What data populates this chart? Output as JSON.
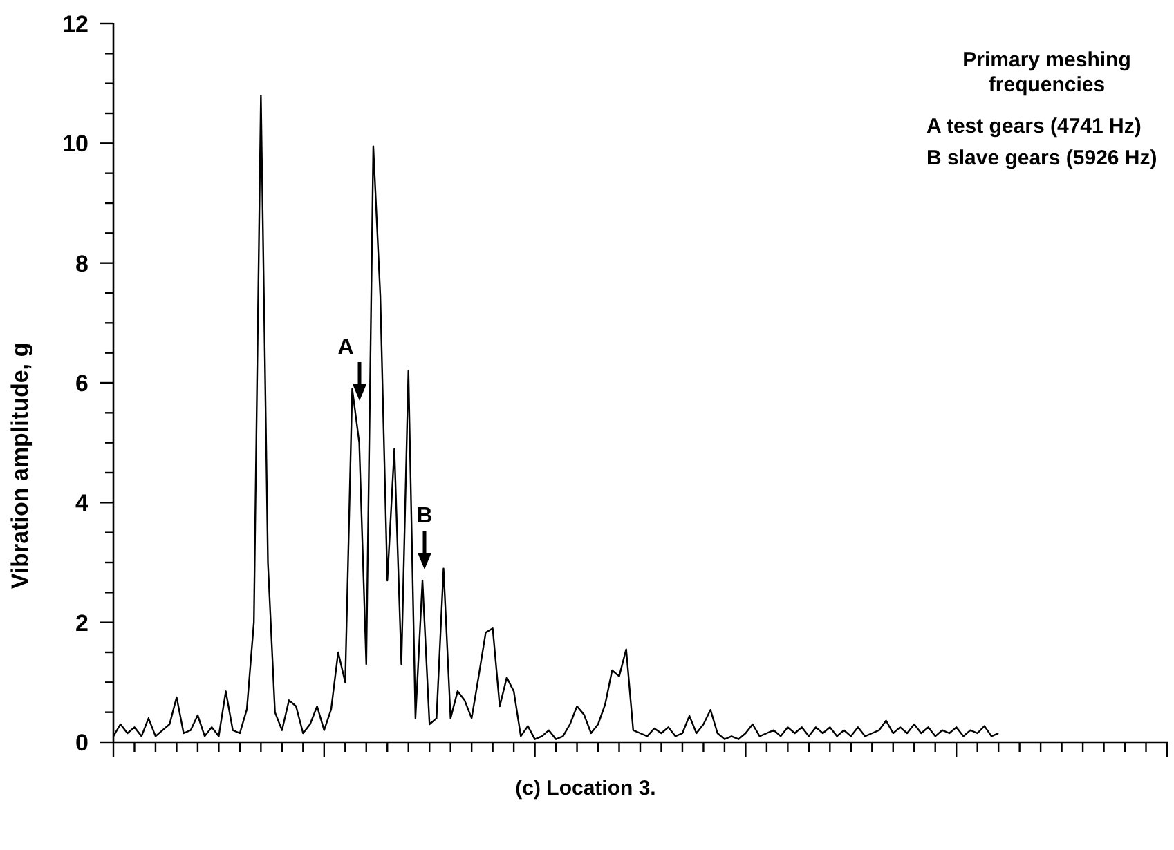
{
  "chart_data": {
    "type": "line",
    "xlabel": "(c) Location 3.",
    "ylabel": "Vibration amplitude, g",
    "categories": [
      null,
      null,
      null,
      null,
      null,
      null,
      null,
      null,
      null,
      null,
      null,
      null,
      null,
      null,
      null,
      null,
      null,
      null,
      null,
      null,
      null,
      null,
      null,
      null,
      null,
      null,
      null,
      null,
      null,
      null,
      null,
      null,
      null,
      null,
      null,
      null,
      null,
      null,
      null,
      null,
      null,
      null,
      null,
      null,
      null,
      null,
      null,
      null,
      null,
      null,
      null,
      null,
      null,
      null,
      null,
      null,
      null,
      null,
      null,
      null,
      null,
      null,
      null,
      null,
      null,
      null,
      null,
      null,
      null,
      null,
      null,
      null,
      null,
      null,
      null,
      null,
      null,
      null,
      null,
      null,
      null,
      null,
      null,
      null,
      null,
      null,
      null,
      null,
      null,
      null,
      null,
      null,
      null,
      null,
      null,
      null,
      null,
      null,
      null,
      null,
      null,
      null,
      null,
      null,
      null,
      null,
      null,
      null,
      null,
      null,
      null,
      null,
      null,
      null,
      null,
      null,
      null,
      null,
      null,
      null,
      null,
      null,
      null,
      null,
      null,
      null,
      null
    ],
    "series": [
      {
        "color": "#000000",
        "values": [
          0.1,
          0.3,
          0.15,
          0.25,
          0.1,
          0.4,
          0.1,
          0.2,
          0.3,
          0.75,
          0.15,
          0.2,
          0.45,
          0.1,
          0.25,
          0.1,
          0.85,
          0.2,
          0.15,
          0.55,
          2.0,
          10.8,
          3.0,
          0.5,
          0.2,
          0.7,
          0.6,
          0.15,
          0.3,
          0.6,
          0.2,
          0.55,
          1.5,
          1.0,
          5.9,
          5.0,
          1.3,
          9.95,
          7.45,
          2.7,
          4.9,
          1.3,
          6.2,
          0.4,
          2.7,
          0.3,
          0.4,
          2.9,
          0.4,
          0.85,
          0.7,
          0.4,
          1.1,
          1.83,
          1.9,
          0.6,
          1.08,
          0.85,
          0.1,
          0.27,
          0.05,
          0.1,
          0.2,
          0.05,
          0.1,
          0.3,
          0.6,
          0.46,
          0.15,
          0.3,
          0.63,
          1.2,
          1.1,
          1.55,
          0.2,
          0.15,
          0.1,
          0.23,
          0.15,
          0.25,
          0.1,
          0.15,
          0.44,
          0.15,
          0.3,
          0.54,
          0.15,
          0.05,
          0.1,
          0.05,
          0.15,
          0.3,
          0.1,
          0.15,
          0.2,
          0.1,
          0.25,
          0.15,
          0.25,
          0.1,
          0.25,
          0.15,
          0.25,
          0.1,
          0.2,
          0.1,
          0.25,
          0.1,
          0.15,
          0.2,
          0.36,
          0.15,
          0.25,
          0.15,
          0.3,
          0.15,
          0.25,
          0.1,
          0.2,
          0.15,
          0.25,
          0.1,
          0.2,
          0.15,
          0.27,
          0.1,
          0.15
        ]
      }
    ],
    "ylim": [
      0,
      12
    ],
    "yticks": [
      0,
      {
        "value": 0.5,
        "label": null
      },
      {
        "value": 1,
        "label": null
      },
      {
        "value": 1.5,
        "label": null
      },
      2,
      {
        "value": 2.5,
        "label": null
      },
      {
        "value": 3,
        "label": null
      },
      {
        "value": 3.5,
        "label": null
      },
      4,
      {
        "value": 4.5,
        "label": null
      },
      {
        "value": 5,
        "label": null
      },
      {
        "value": 5.5,
        "label": null
      },
      6,
      {
        "value": 6.5,
        "label": null
      },
      {
        "value": 7,
        "label": null
      },
      {
        "value": 7.5,
        "label": null
      },
      8,
      {
        "value": 8.5,
        "label": null
      },
      {
        "value": 9,
        "label": null
      },
      {
        "value": 9.5,
        "label": null
      },
      10,
      {
        "value": 10.5,
        "label": null
      },
      {
        "value": 11,
        "label": null
      },
      {
        "value": 11.5,
        "label": null
      },
      12
    ],
    "tick_labels": "y",
    "grid": false,
    "marker": "none",
    "line_style": "solid",
    "annotations": [
      "A",
      "B",
      "Primary meshing frequencies",
      "A test gears (4741 Hz)",
      "B slave gears (5926 Hz)"
    ]
  }
}
